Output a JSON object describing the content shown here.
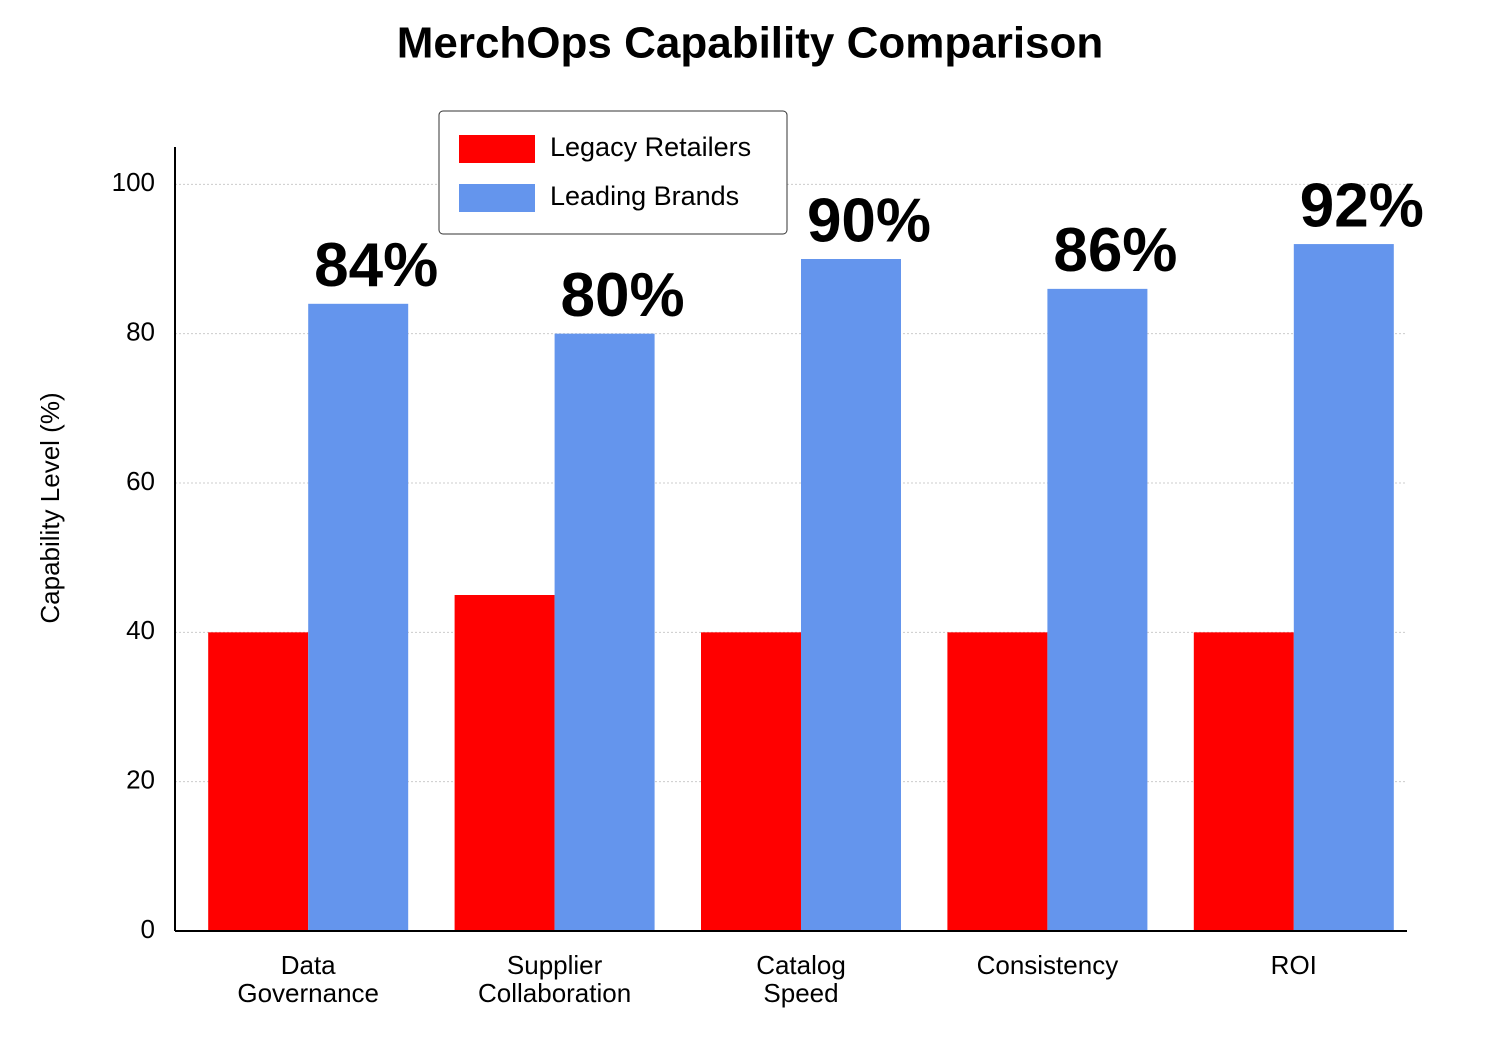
{
  "chart_data": {
    "type": "bar",
    "title": "MerchOps Capability Comparison",
    "y_label": "Capability Level (%)",
    "categories": [
      "Data\nGovernance",
      "Supplier\nCollaboration",
      "Catalog\nSpeed",
      "Consistency",
      "ROI"
    ],
    "series": [
      {
        "name": "Legacy Retailers",
        "color": "#ff0000",
        "values": [
          40,
          45,
          40,
          40,
          40
        ]
      },
      {
        "name": "Leading Brands",
        "color": "#6495ed",
        "values": [
          84,
          80,
          90,
          86,
          92
        ],
        "value_labels": [
          "84%",
          "80%",
          "90%",
          "86%",
          "92%"
        ]
      }
    ],
    "ylim": [
      0,
      105
    ],
    "yticks": [
      0,
      20,
      40,
      60,
      80,
      100
    ],
    "grid": true,
    "legend": "upper left"
  }
}
